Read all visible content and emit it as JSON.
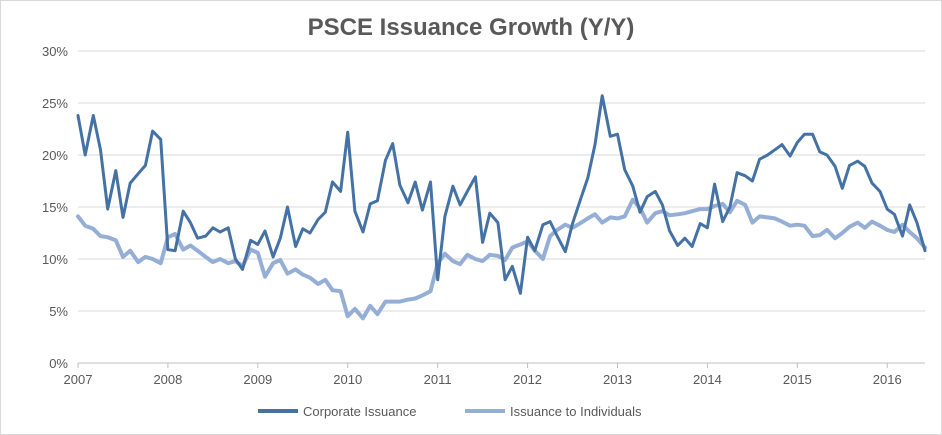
{
  "chart_data": {
    "type": "line",
    "title": "PSCE Issuance Growth (Y/Y)",
    "xlabel": "",
    "ylabel": "",
    "xlim": [
      2007.0,
      2016.42
    ],
    "ylim": [
      0,
      30
    ],
    "y_ticks": [
      "0%",
      "5%",
      "10%",
      "15%",
      "20%",
      "25%",
      "30%"
    ],
    "y_tick_values": [
      0,
      5,
      10,
      15,
      20,
      25,
      30
    ],
    "x_ticks": [
      "2007",
      "2008",
      "2009",
      "2010",
      "2011",
      "2012",
      "2013",
      "2014",
      "2015",
      "2016"
    ],
    "x_tick_values": [
      2007,
      2008,
      2009,
      2010,
      2011,
      2012,
      2013,
      2014,
      2015,
      2016
    ],
    "grid": "horizontal",
    "legend": "bottom",
    "series": [
      {
        "name": "Corporate Issuance",
        "color": "#4472a4",
        "x": [
          2007.0,
          2007.08,
          2007.17,
          2007.25,
          2007.33,
          2007.42,
          2007.5,
          2007.58,
          2007.67,
          2007.75,
          2007.83,
          2007.92,
          2008.0,
          2008.08,
          2008.17,
          2008.25,
          2008.33,
          2008.42,
          2008.5,
          2008.58,
          2008.67,
          2008.75,
          2008.83,
          2008.92,
          2009.0,
          2009.08,
          2009.17,
          2009.25,
          2009.33,
          2009.42,
          2009.5,
          2009.58,
          2009.67,
          2009.75,
          2009.83,
          2009.92,
          2010.0,
          2010.08,
          2010.17,
          2010.25,
          2010.33,
          2010.42,
          2010.5,
          2010.58,
          2010.67,
          2010.75,
          2010.83,
          2010.92,
          2011.0,
          2011.08,
          2011.17,
          2011.25,
          2011.33,
          2011.42,
          2011.5,
          2011.58,
          2011.67,
          2011.75,
          2011.83,
          2011.92,
          2012.0,
          2012.08,
          2012.17,
          2012.25,
          2012.33,
          2012.42,
          2012.5,
          2012.58,
          2012.67,
          2012.75,
          2012.83,
          2012.92,
          2013.0,
          2013.08,
          2013.17,
          2013.25,
          2013.33,
          2013.42,
          2013.5,
          2013.58,
          2013.67,
          2013.75,
          2013.83,
          2013.92,
          2014.0,
          2014.08,
          2014.17,
          2014.25,
          2014.33,
          2014.42,
          2014.5,
          2014.58,
          2014.67,
          2014.75,
          2014.83,
          2014.92,
          2015.0,
          2015.08,
          2015.17,
          2015.25,
          2015.33,
          2015.42,
          2015.5,
          2015.58,
          2015.67,
          2015.75,
          2015.83,
          2015.92,
          2016.0,
          2016.08,
          2016.17,
          2016.25,
          2016.33,
          2016.42
        ],
        "values": [
          23.8,
          20.0,
          23.8,
          20.5,
          14.8,
          18.5,
          14.0,
          17.3,
          18.2,
          19.0,
          22.3,
          21.5,
          10.9,
          10.8,
          14.6,
          13.5,
          12.0,
          12.2,
          13.0,
          12.6,
          13.0,
          10.0,
          9.0,
          11.8,
          11.4,
          12.7,
          10.2,
          12.0,
          15.0,
          11.2,
          12.9,
          12.5,
          13.8,
          14.5,
          17.4,
          16.5,
          22.2,
          14.6,
          12.6,
          15.3,
          15.6,
          19.5,
          21.1,
          17.1,
          15.4,
          17.4,
          14.7,
          17.4,
          8.0,
          14.1,
          17.0,
          15.2,
          16.5,
          17.9,
          11.6,
          14.4,
          13.5,
          8.0,
          9.3,
          6.7,
          12.1,
          10.8,
          13.3,
          13.6,
          12.2,
          10.7,
          13.4,
          15.5,
          17.8,
          21.0,
          25.7,
          21.8,
          22.0,
          18.6,
          17.0,
          14.5,
          16.0,
          16.5,
          15.2,
          12.7,
          11.3,
          12.0,
          11.2,
          13.4,
          13.0,
          17.2,
          13.6,
          15.0,
          18.3,
          18.0,
          17.5,
          19.6,
          20.0,
          20.5,
          21.0,
          19.9,
          21.2,
          22.0,
          22.0,
          20.3,
          20.0,
          18.9,
          16.8,
          19.0,
          19.4,
          18.9,
          17.3,
          16.5,
          14.8,
          14.3,
          12.2,
          15.2,
          13.5,
          10.8
        ]
      },
      {
        "name": "Issuance to Individuals",
        "color": "#95aed6",
        "x": [
          2007.0,
          2007.08,
          2007.17,
          2007.25,
          2007.33,
          2007.42,
          2007.5,
          2007.58,
          2007.67,
          2007.75,
          2007.83,
          2007.92,
          2008.0,
          2008.08,
          2008.17,
          2008.25,
          2008.33,
          2008.42,
          2008.5,
          2008.58,
          2008.67,
          2008.75,
          2008.83,
          2008.92,
          2009.0,
          2009.08,
          2009.17,
          2009.25,
          2009.33,
          2009.42,
          2009.5,
          2009.58,
          2009.67,
          2009.75,
          2009.83,
          2009.92,
          2010.0,
          2010.08,
          2010.17,
          2010.25,
          2010.33,
          2010.42,
          2010.5,
          2010.58,
          2010.67,
          2010.75,
          2010.83,
          2010.92,
          2011.0,
          2011.08,
          2011.17,
          2011.25,
          2011.33,
          2011.42,
          2011.5,
          2011.58,
          2011.67,
          2011.75,
          2011.83,
          2011.92,
          2012.0,
          2012.08,
          2012.17,
          2012.25,
          2012.33,
          2012.42,
          2012.5,
          2012.58,
          2012.67,
          2012.75,
          2012.83,
          2012.92,
          2013.0,
          2013.08,
          2013.17,
          2013.25,
          2013.33,
          2013.42,
          2013.5,
          2013.58,
          2013.67,
          2013.75,
          2013.83,
          2013.92,
          2014.0,
          2014.08,
          2014.17,
          2014.25,
          2014.33,
          2014.42,
          2014.5,
          2014.58,
          2014.67,
          2014.75,
          2014.83,
          2014.92,
          2015.0,
          2015.08,
          2015.17,
          2015.25,
          2015.33,
          2015.42,
          2015.5,
          2015.58,
          2015.67,
          2015.75,
          2015.83,
          2015.92,
          2016.0,
          2016.08,
          2016.17,
          2016.25,
          2016.33,
          2016.42
        ],
        "values": [
          14.1,
          13.2,
          12.9,
          12.2,
          12.1,
          11.8,
          10.2,
          10.8,
          9.7,
          10.2,
          10.0,
          9.6,
          12.1,
          12.4,
          10.9,
          11.3,
          10.8,
          10.2,
          9.7,
          10.0,
          9.6,
          9.8,
          9.3,
          10.9,
          10.6,
          8.3,
          9.6,
          9.9,
          8.6,
          9.0,
          8.5,
          8.2,
          7.6,
          8.0,
          7.0,
          6.9,
          4.5,
          5.2,
          4.3,
          5.5,
          4.7,
          5.9,
          5.9,
          5.9,
          6.1,
          6.2,
          6.5,
          6.9,
          9.6,
          10.5,
          9.8,
          9.5,
          10.4,
          10.0,
          9.8,
          10.4,
          10.3,
          9.9,
          11.1,
          11.4,
          11.7,
          10.8,
          10.0,
          12.2,
          12.8,
          13.3,
          13.0,
          13.4,
          13.9,
          14.3,
          13.5,
          14.0,
          13.9,
          14.1,
          15.7,
          14.9,
          13.5,
          14.4,
          14.6,
          14.2,
          14.3,
          14.4,
          14.6,
          14.8,
          14.8,
          15.1,
          15.3,
          14.5,
          15.6,
          15.2,
          13.5,
          14.1,
          14.0,
          13.9,
          13.6,
          13.2,
          13.3,
          13.2,
          12.2,
          12.3,
          12.8,
          12.0,
          12.5,
          13.1,
          13.5,
          13.0,
          13.6,
          13.2,
          12.8,
          12.6,
          13.3,
          12.6,
          12.0,
          11.1
        ]
      }
    ]
  }
}
